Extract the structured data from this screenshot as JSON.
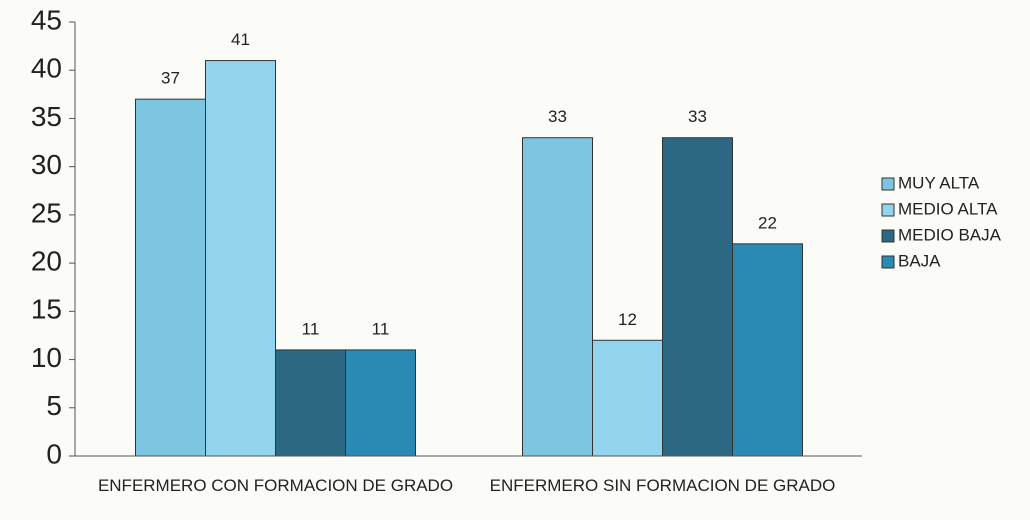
{
  "chart_data": {
    "type": "bar",
    "categories": [
      "ENFERMERO CON FORMACION DE GRADO",
      "ENFERMERO SIN FORMACION DE GRADO"
    ],
    "series": [
      {
        "name": "MUY ALTA",
        "color": "#7cc6e2",
        "values": [
          37,
          33
        ]
      },
      {
        "name": "MEDIO ALTA",
        "color": "#92d4ee",
        "values": [
          41,
          12
        ]
      },
      {
        "name": "MEDIO BAJA",
        "color": "#2c6783",
        "values": [
          11,
          33
        ]
      },
      {
        "name": "BAJA",
        "color": "#2a8ab4",
        "values": [
          11,
          22
        ]
      }
    ],
    "ylim": [
      0,
      45
    ],
    "yticks": [
      0,
      5,
      10,
      15,
      20,
      25,
      30,
      35,
      40,
      45
    ],
    "grid": false,
    "legend": "right"
  }
}
